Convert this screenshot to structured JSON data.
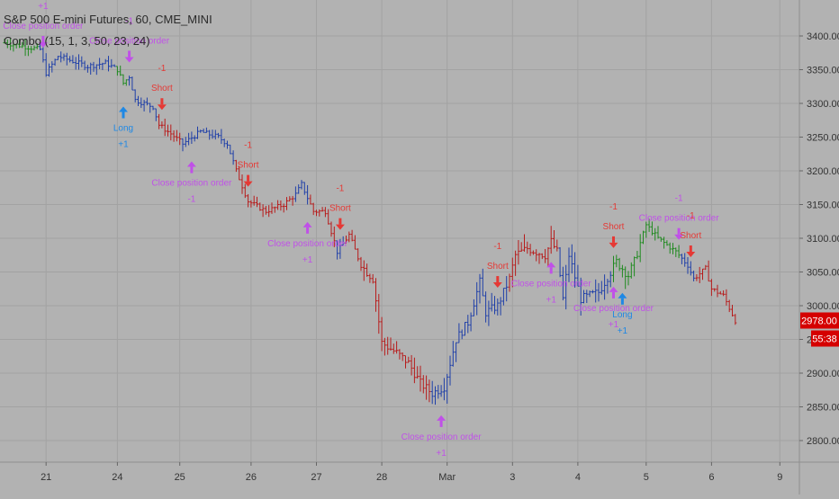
{
  "header": {
    "symbol_line": "S&P 500 E-mini Futures, 60, CME_MINI",
    "study_line": "Combo (15, 1, 3, 50, 23, 24)"
  },
  "price_badge": "2978.00",
  "timer_badge": "55:38",
  "colors": {
    "background": "#b2b2b2",
    "grid": "#a2a2a2",
    "bar_blue": "#1f3fa8",
    "bar_red": "#b71c1c",
    "bar_green": "#1f8a1f",
    "long_arrow": "#1e88e5",
    "short_arrow": "#e53935",
    "close_arrow": "#c050e8",
    "badge": "#d50000"
  },
  "chart_data": {
    "type": "ohlc",
    "title": "S&P 500 E-mini Futures, 60, CME_MINI",
    "indicator": "Combo (15, 1, 3, 50, 23, 24)",
    "ylim": [
      2765,
      3440
    ],
    "y_ticks": [
      2800,
      2850,
      2900,
      2950,
      3000,
      3050,
      3100,
      3150,
      3200,
      3250,
      3300,
      3350,
      3400
    ],
    "x_ticks": [
      {
        "label": "21",
        "bar": 14
      },
      {
        "label": "24",
        "bar": 38
      },
      {
        "label": "25",
        "bar": 59
      },
      {
        "label": "26",
        "bar": 83
      },
      {
        "label": "27",
        "bar": 105
      },
      {
        "label": "28",
        "bar": 127
      },
      {
        "label": "Mar",
        "bar": 149
      },
      {
        "label": "3",
        "bar": 171
      },
      {
        "label": "4",
        "bar": 193
      },
      {
        "label": "5",
        "bar": 216
      },
      {
        "label": "6",
        "bar": 238
      },
      {
        "label": "9",
        "bar": 261
      }
    ],
    "bar_count": 246,
    "anchors": [
      [
        0,
        3390
      ],
      [
        12,
        3380
      ],
      [
        14,
        3345
      ],
      [
        18,
        3370
      ],
      [
        28,
        3355
      ],
      [
        34,
        3360
      ],
      [
        38,
        3350
      ],
      [
        40,
        3330
      ],
      [
        42,
        3340
      ],
      [
        44,
        3305
      ],
      [
        50,
        3295
      ],
      [
        52,
        3268
      ],
      [
        56,
        3255
      ],
      [
        60,
        3240
      ],
      [
        66,
        3258
      ],
      [
        72,
        3250
      ],
      [
        75,
        3240
      ],
      [
        78,
        3200
      ],
      [
        82,
        3155
      ],
      [
        88,
        3140
      ],
      [
        94,
        3150
      ],
      [
        98,
        3165
      ],
      [
        100,
        3180
      ],
      [
        104,
        3140
      ],
      [
        108,
        3140
      ],
      [
        112,
        3080
      ],
      [
        116,
        3105
      ],
      [
        120,
        3060
      ],
      [
        124,
        3040
      ],
      [
        127,
        2945
      ],
      [
        132,
        2930
      ],
      [
        136,
        2915
      ],
      [
        140,
        2885
      ],
      [
        144,
        2870
      ],
      [
        148,
        2880
      ],
      [
        152,
        2950
      ],
      [
        156,
        2975
      ],
      [
        160,
        3035
      ],
      [
        162,
        2990
      ],
      [
        166,
        3000
      ],
      [
        170,
        3040
      ],
      [
        172,
        3075
      ],
      [
        176,
        3085
      ],
      [
        182,
        3075
      ],
      [
        184,
        3095
      ],
      [
        186,
        3080
      ],
      [
        188,
        3010
      ],
      [
        190,
        3075
      ],
      [
        194,
        3010
      ],
      [
        200,
        3020
      ],
      [
        206,
        3065
      ],
      [
        210,
        3045
      ],
      [
        212,
        3065
      ],
      [
        216,
        3120
      ],
      [
        220,
        3100
      ],
      [
        226,
        3080
      ],
      [
        230,
        3060
      ],
      [
        232,
        3040
      ],
      [
        236,
        3055
      ],
      [
        238,
        3025
      ],
      [
        242,
        3015
      ],
      [
        246,
        2978
      ]
    ],
    "color_ranges": [
      {
        "from": 0,
        "to": 11,
        "color": "bar_green"
      },
      {
        "from": 12,
        "to": 37,
        "color": "bar_blue"
      },
      {
        "from": 38,
        "to": 41,
        "color": "bar_green"
      },
      {
        "from": 42,
        "to": 51,
        "color": "bar_blue"
      },
      {
        "from": 52,
        "to": 59,
        "color": "bar_red"
      },
      {
        "from": 60,
        "to": 77,
        "color": "bar_blue"
      },
      {
        "from": 78,
        "to": 97,
        "color": "bar_red"
      },
      {
        "from": 98,
        "to": 102,
        "color": "bar_blue"
      },
      {
        "from": 103,
        "to": 111,
        "color": "bar_red"
      },
      {
        "from": 112,
        "to": 114,
        "color": "bar_blue"
      },
      {
        "from": 115,
        "to": 143,
        "color": "bar_red"
      },
      {
        "from": 144,
        "to": 169,
        "color": "bar_blue"
      },
      {
        "from": 170,
        "to": 186,
        "color": "bar_red"
      },
      {
        "from": 187,
        "to": 204,
        "color": "bar_blue"
      },
      {
        "from": 205,
        "to": 227,
        "color": "bar_green"
      },
      {
        "from": 228,
        "to": 232,
        "color": "bar_blue"
      },
      {
        "from": 233,
        "to": 246,
        "color": "bar_red"
      }
    ],
    "signals": [
      {
        "bar": 13,
        "type": "close",
        "side": "sell",
        "lines": [
          "+1",
          "Close position order"
        ]
      },
      {
        "bar": 40,
        "type": "long",
        "side": "buy",
        "lines": [
          "Long",
          "+1"
        ]
      },
      {
        "bar": 42,
        "type": "close",
        "side": "sell",
        "lines": [
          "-1",
          "Close position order"
        ]
      },
      {
        "bar": 53,
        "type": "short",
        "side": "sell",
        "lines": [
          "-1",
          "Short"
        ]
      },
      {
        "bar": 63,
        "type": "close",
        "side": "buy",
        "lines": [
          "Close position order",
          "-1"
        ]
      },
      {
        "bar": 82,
        "type": "short",
        "side": "sell",
        "lines": [
          "-1",
          "Short"
        ]
      },
      {
        "bar": 102,
        "type": "close",
        "side": "buy",
        "lines": [
          "Close position order",
          "+1"
        ]
      },
      {
        "bar": 113,
        "type": "short",
        "side": "sell",
        "lines": [
          "-1",
          "Short"
        ]
      },
      {
        "bar": 147,
        "type": "close",
        "side": "buy",
        "lines": [
          "Close position order",
          "+1"
        ]
      },
      {
        "bar": 166,
        "type": "short",
        "side": "sell",
        "lines": [
          "-1",
          "Short"
        ]
      },
      {
        "bar": 184,
        "type": "close",
        "side": "buy",
        "lines": [
          "Close position order",
          "+1"
        ]
      },
      {
        "bar": 205,
        "type": "short",
        "side": "sell",
        "lines": [
          "-1",
          "Short"
        ]
      },
      {
        "bar": 205,
        "type": "close",
        "side": "buy",
        "lines": [
          "Close position order",
          "+1"
        ]
      },
      {
        "bar": 208,
        "type": "long",
        "side": "buy",
        "lines": [
          "Long",
          "+1"
        ]
      },
      {
        "bar": 227,
        "type": "close",
        "side": "sell",
        "lines": [
          "-1",
          "Close position order"
        ]
      },
      {
        "bar": 231,
        "type": "short",
        "side": "sell",
        "lines": [
          "-1",
          "Short"
        ]
      }
    ]
  }
}
